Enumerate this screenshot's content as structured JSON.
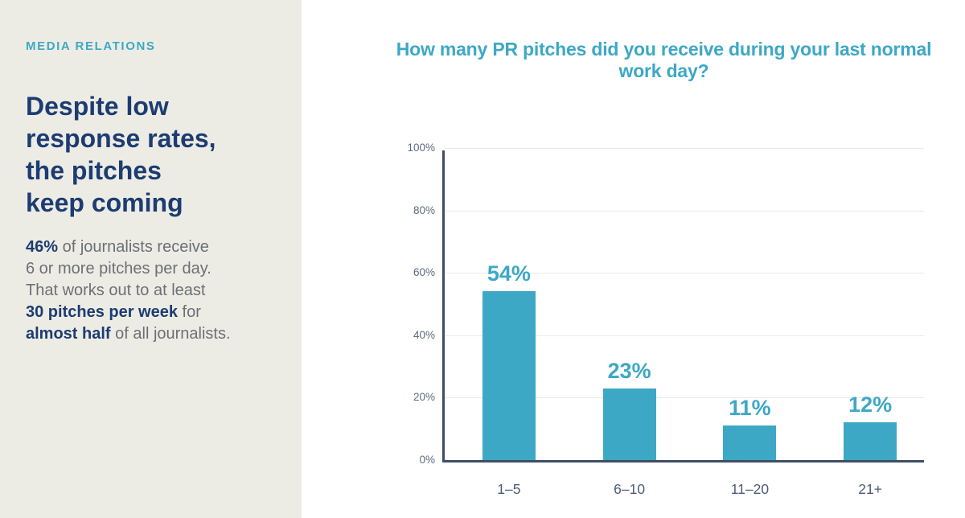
{
  "sidebar": {
    "eyebrow": "MEDIA RELATIONS",
    "headline": "Despite low\nresponse rates,\nthe pitches\nkeep coming",
    "body_segments": [
      {
        "text": "46%",
        "bold": true
      },
      {
        "text": " of journalists receive\n6 or more pitches per day.\nThat works out to at least\n",
        "bold": false
      },
      {
        "text": "30 pitches per week",
        "bold": true
      },
      {
        "text": " for\n",
        "bold": false
      },
      {
        "text": "almost half",
        "bold": true
      },
      {
        "text": " of all journalists.",
        "bold": false
      }
    ]
  },
  "chart_data": {
    "type": "bar",
    "title": "How many PR pitches did you receive during your last normal work day?",
    "categories": [
      "1–5",
      "6–10",
      "11–20",
      "21+"
    ],
    "values": [
      54,
      23,
      11,
      12
    ],
    "data_labels": [
      "54%",
      "23%",
      "11%",
      "12%"
    ],
    "xlabel": "",
    "ylabel": "",
    "ylim": [
      0,
      100
    ],
    "y_ticks": [
      0,
      20,
      40,
      60,
      80,
      100
    ],
    "y_tick_labels": [
      "0%",
      "20%",
      "40%",
      "60%",
      "80%",
      "100%"
    ],
    "grid": true,
    "legend": false
  },
  "theme": {
    "panel_background": "#EDECE4",
    "chart_background": "#FFFFFF",
    "accent_teal": "#3DA8C5",
    "navy": "#1C3C72",
    "body_gray": "#6B7076",
    "axis_color": "#3E4E66",
    "gridline_color": "#E5E9EF",
    "y_tick_color": "#5C6B7D",
    "x_tick_color": "#4D5C77"
  }
}
